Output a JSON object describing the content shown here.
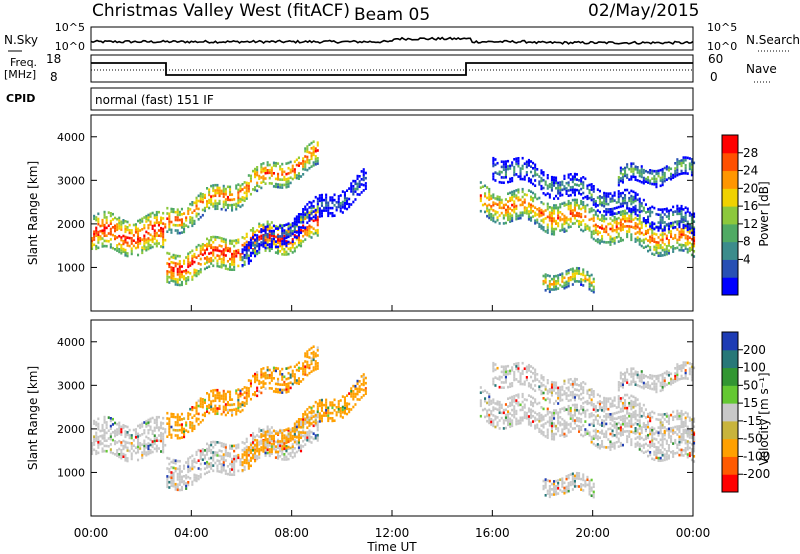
{
  "header": {
    "title": "Christmas Valley West (fitACF)",
    "beam": "Beam 05",
    "date": "02/May/2015"
  },
  "top_panels": {
    "nsky_label": "N.Sky",
    "nsearch_label": "N.Search",
    "noise_ticks_left": [
      "10^5",
      "10^0"
    ],
    "noise_ticks_right": [
      "10^5",
      "10^0"
    ],
    "freq_label_1": "Freq.",
    "freq_label_2": "[MHz]",
    "freq_ticks": [
      "18",
      "8"
    ],
    "nave_label": "Nave",
    "nave_ticks": [
      "60",
      "0"
    ],
    "cpid_label": "CPID",
    "cpid_text": "normal (fast) 151 IF"
  },
  "axes": {
    "ylabel": "Slant Range [km]",
    "xlabel": "Time UT",
    "x_ticks": [
      "00:00",
      "04:00",
      "08:00",
      "12:00",
      "16:00",
      "20:00",
      "00:00"
    ],
    "y_ticks": [
      "1000",
      "2000",
      "3000",
      "4000"
    ]
  },
  "colorbars": {
    "power_label": "Power [dB]",
    "power_ticks": [
      "28",
      "24",
      "20",
      "16",
      "12",
      "8",
      "4"
    ],
    "velocity_label": "Velocity [m s⁻¹]",
    "velocity_ticks": [
      "200",
      "100",
      "50",
      "15",
      "-15",
      "-50",
      "-100",
      "-200"
    ],
    "power_colors": [
      "#0000ff",
      "#2850b4",
      "#3c8c8c",
      "#50aa64",
      "#8cc83c",
      "#f0d200",
      "#ff9600",
      "#ff5000",
      "#ff0000"
    ],
    "velocity_colors": [
      "#ff0000",
      "#ff5a00",
      "#ffa000",
      "#c8b43c",
      "#c8c8c8",
      "#64c832",
      "#329632",
      "#287878",
      "#1e3cb4"
    ]
  },
  "chart_data": {
    "type": "heatmap",
    "x_range": [
      "00:00",
      "24:00"
    ],
    "ylim": [
      0,
      4500
    ],
    "panels": [
      "Power",
      "Velocity"
    ],
    "frequency_steps": [
      {
        "start": "00:00",
        "end": "03:00",
        "mhz": 15
      },
      {
        "start": "03:00",
        "end": "15:00",
        "mhz": 10
      },
      {
        "start": "15:00",
        "end": "24:00",
        "mhz": 15
      }
    ]
  }
}
